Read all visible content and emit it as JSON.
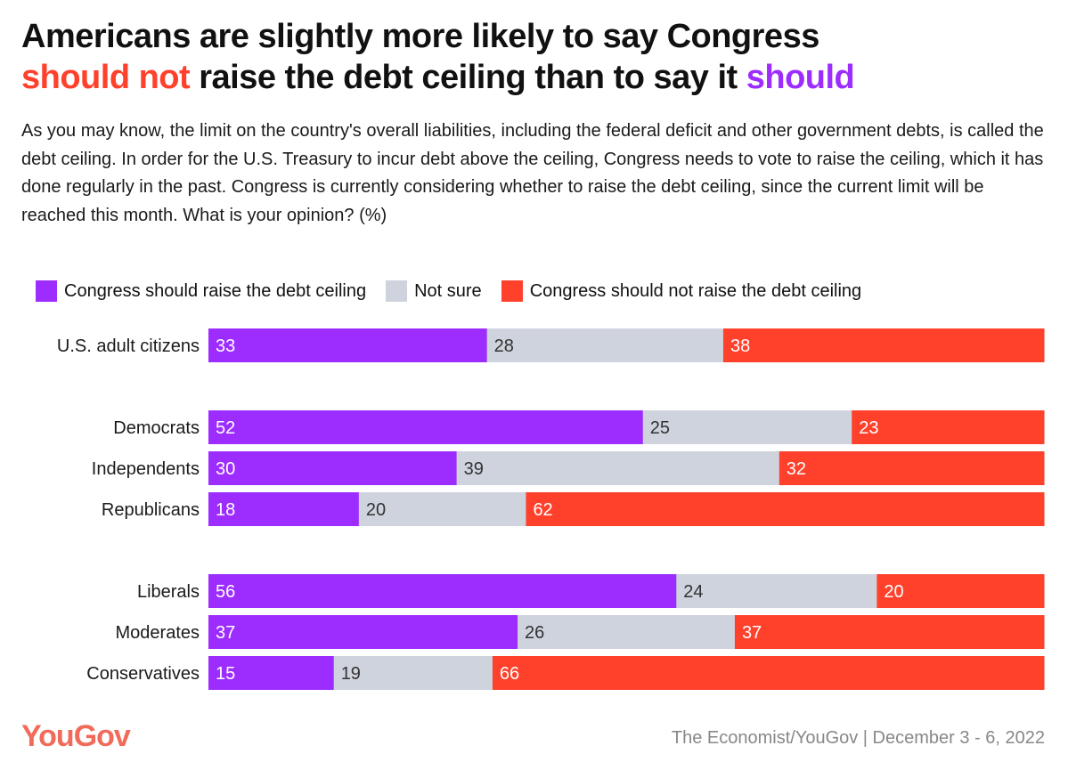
{
  "title": {
    "part1": "Americans are slightly more likely to say Congress",
    "part2_red": "should not",
    "part3": " raise the debt ceiling than to say it ",
    "part4_purple": "should"
  },
  "subtitle": "As you may know, the limit on the country's overall liabilities, including the federal deficit and other government debts, is called the debt ceiling. In order for the U.S. Treasury to incur debt above the ceiling, Congress needs to vote to raise the ceiling, which it has done regularly in the past. Congress is currently considering whether to raise the debt ceiling, since the current limit will be reached this month. What is your opinion? (%)",
  "colors": {
    "raise": "#9d2dff",
    "not_sure": "#cfd3dd",
    "not_raise": "#ff412c"
  },
  "chart_data": {
    "type": "bar",
    "stacked": true,
    "orientation": "horizontal",
    "legend_position": "top-left",
    "categories": [
      "U.S. adult citizens",
      "Democrats",
      "Independents",
      "Republicans",
      "Liberals",
      "Moderates",
      "Conservatives"
    ],
    "groups": [
      [
        0
      ],
      [
        1,
        2,
        3
      ],
      [
        4,
        5,
        6
      ]
    ],
    "series": [
      {
        "name": "Congress should raise the debt ceiling",
        "values": [
          33,
          52,
          30,
          18,
          56,
          37,
          15
        ]
      },
      {
        "name": "Not sure",
        "values": [
          28,
          25,
          39,
          20,
          24,
          26,
          19
        ]
      },
      {
        "name": "Congress should not raise the debt ceiling",
        "values": [
          38,
          23,
          32,
          62,
          20,
          37,
          66
        ]
      }
    ]
  },
  "footer": {
    "logo": "YouGov",
    "source": "The Economist/YouGov | December 3 - 6, 2022"
  }
}
